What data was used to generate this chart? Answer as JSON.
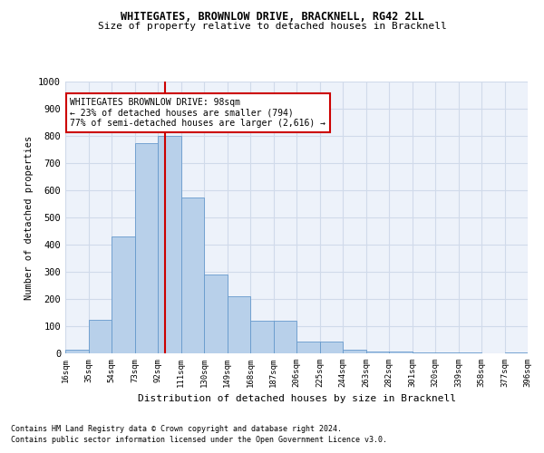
{
  "title1": "WHITEGATES, BROWNLOW DRIVE, BRACKNELL, RG42 2LL",
  "title2": "Size of property relative to detached houses in Bracknell",
  "xlabel": "Distribution of detached houses by size in Bracknell",
  "ylabel": "Number of detached properties",
  "bar_color": "#b8d0ea",
  "bar_edge_color": "#6699cc",
  "grid_color": "#d0daea",
  "bg_color": "#edf2fa",
  "vline_x": 98,
  "vline_color": "#cc0000",
  "annotation_text": "WHITEGATES BROWNLOW DRIVE: 98sqm\n← 23% of detached houses are smaller (794)\n77% of semi-detached houses are larger (2,616) →",
  "annotation_box_color": "#ffffff",
  "annotation_box_edge": "#cc0000",
  "bin_edges": [
    16,
    35,
    54,
    73,
    92,
    111,
    130,
    149,
    168,
    187,
    206,
    225,
    244,
    263,
    282,
    301,
    320,
    339,
    358,
    377,
    396
  ],
  "bar_heights": [
    15,
    125,
    430,
    775,
    800,
    575,
    290,
    210,
    120,
    120,
    42,
    42,
    12,
    8,
    8,
    5,
    2,
    2,
    0,
    5
  ],
  "xlim_left": 16,
  "xlim_right": 396,
  "ylim_top": 1000,
  "yticks": [
    0,
    100,
    200,
    300,
    400,
    500,
    600,
    700,
    800,
    900,
    1000
  ],
  "footnote1": "Contains HM Land Registry data © Crown copyright and database right 2024.",
  "footnote2": "Contains public sector information licensed under the Open Government Licence v3.0."
}
